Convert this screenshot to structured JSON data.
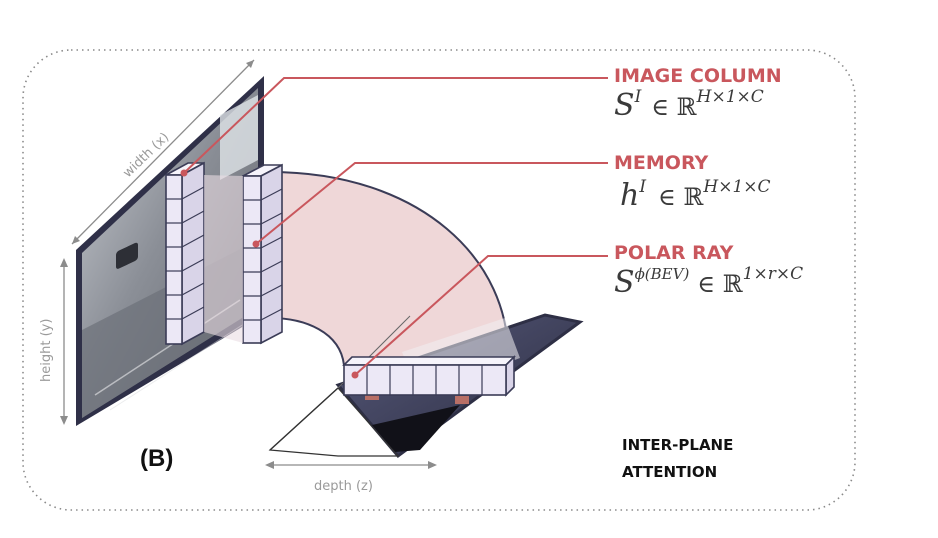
{
  "labels": {
    "image_column": "IMAGE COLUMN",
    "image_column_math": {
      "base": "S",
      "sup": "I",
      "in": "∈ ℝ",
      "dims": "H×1×C"
    },
    "memory": "MEMORY",
    "memory_math": {
      "base": "h",
      "sup": "I",
      "in": "∈ ℝ",
      "dims": "H×1×C"
    },
    "polar_ray": "POLAR RAY",
    "polar_ray_math": {
      "base": "S",
      "sup": "ϕ(BEV)",
      "in": "∈ ℝ",
      "dims": "1×r×C"
    },
    "panel": "(B)",
    "attention_line1": "INTER-PLANE",
    "attention_line2": "ATTENTION"
  },
  "axes": {
    "width": "width (x)",
    "height": "height (y)",
    "depth": "depth (z)"
  },
  "colors": {
    "accent": "#c9575d",
    "frame": "#2e2f45",
    "cell_fill": "#ece8f6",
    "cell_stroke": "#3b3c57",
    "band": "#e9c9cb"
  }
}
